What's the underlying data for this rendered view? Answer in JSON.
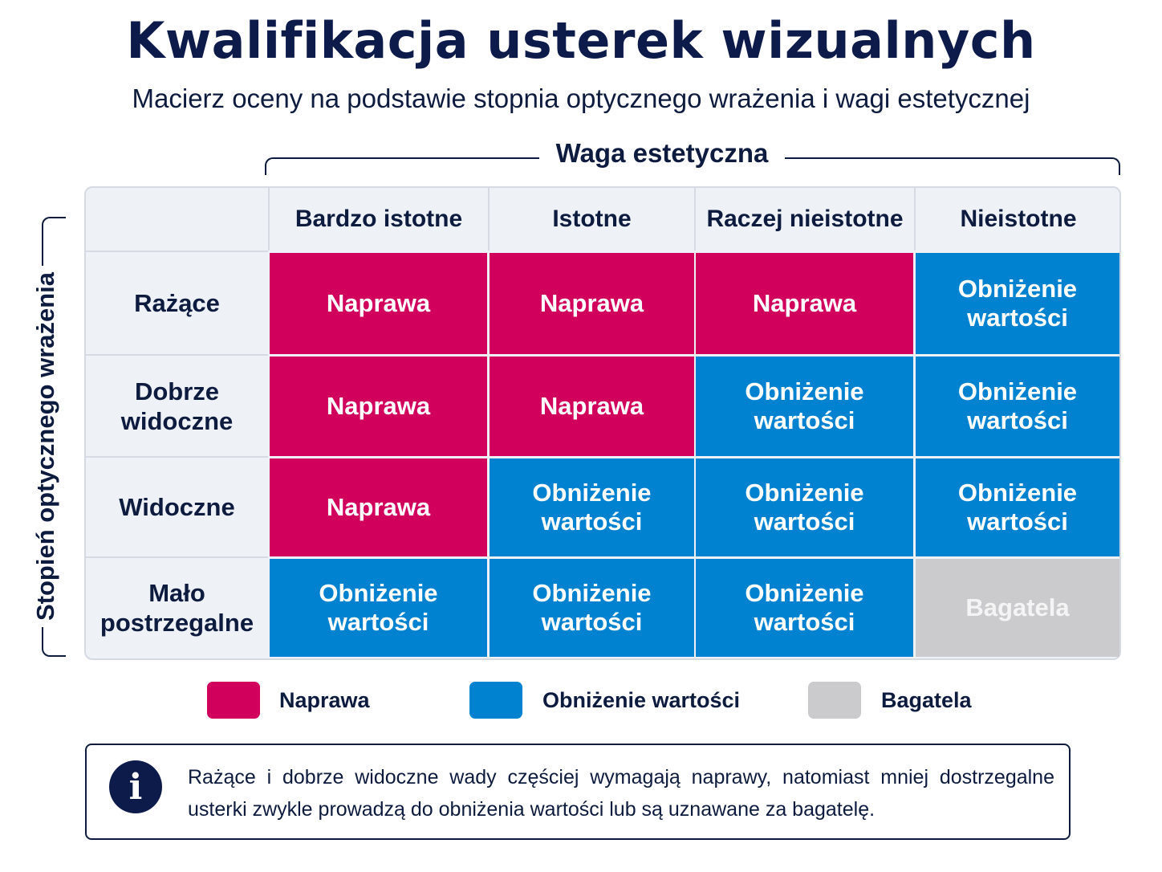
{
  "title": "Kwalifikacja usterek wizualnych",
  "subtitle": "Macierz oceny na podstawie stopnia optycznego wrażenia i wagi estetycznej",
  "x_axis_label": "Waga estetyczna",
  "y_axis_label": "Stopień optycznego wrażenia",
  "columns": [
    "Bardzo istotne",
    "Istotne",
    "Raczej nieistotne",
    "Nieistotne"
  ],
  "rows": [
    {
      "label_lines": [
        "Rażące"
      ],
      "cells": [
        "repair",
        "repair",
        "repair",
        "value"
      ]
    },
    {
      "label_lines": [
        "Dobrze",
        "widoczne"
      ],
      "cells": [
        "repair",
        "repair",
        "value",
        "value"
      ]
    },
    {
      "label_lines": [
        "Widoczne"
      ],
      "cells": [
        "repair",
        "value",
        "value",
        "value"
      ]
    },
    {
      "label_lines": [
        "Mało",
        "postrzegalne"
      ],
      "cells": [
        "value",
        "value",
        "value",
        "trifle"
      ]
    }
  ],
  "categories": {
    "repair": {
      "lines": [
        "Naprawa"
      ],
      "color": "#d1005d",
      "text_color": "#ffffff"
    },
    "value": {
      "lines": [
        "Obniżenie",
        "wartości"
      ],
      "color": "#0082d1",
      "text_color": "#ffffff"
    },
    "trifle": {
      "lines": [
        "Bagatela"
      ],
      "color": "#cbcbcd",
      "text_color": "#f4f4f5"
    }
  },
  "legend": [
    {
      "key": "repair",
      "label": "Naprawa"
    },
    {
      "key": "value",
      "label": "Obniżenie wartości"
    },
    {
      "key": "trifle",
      "label": "Bagatela"
    }
  ],
  "info": {
    "icon": "info-icon",
    "glyph": "i",
    "text": "Rażące i dobrze widoczne wady częściej wymagają naprawy, natomiast mniej dostrzegalne usterki zwykle prowadzą do obniżenia wartości lub są uznawane za bagatelę."
  }
}
